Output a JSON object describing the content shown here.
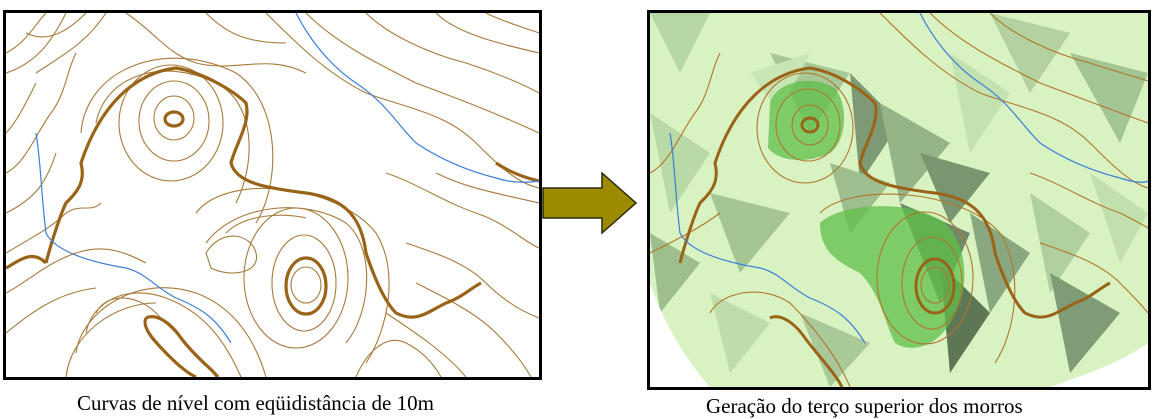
{
  "panels": {
    "left": {
      "caption": "Curvas de nível com eqüidistância de 10m"
    },
    "right": {
      "caption": "Geração do terço superior dos morros"
    }
  },
  "colors": {
    "contour": "#9a6a1e",
    "index_contour": "#9a6418",
    "stream": "#3a7ed8",
    "terrain_light": "#d8f2c2",
    "terrain_shade": "#8aa880",
    "hilltop": "#5fbf4a",
    "arrow": "#9c8a00",
    "frame": "#000000"
  },
  "icons": {
    "transition": "right-arrow-icon"
  }
}
